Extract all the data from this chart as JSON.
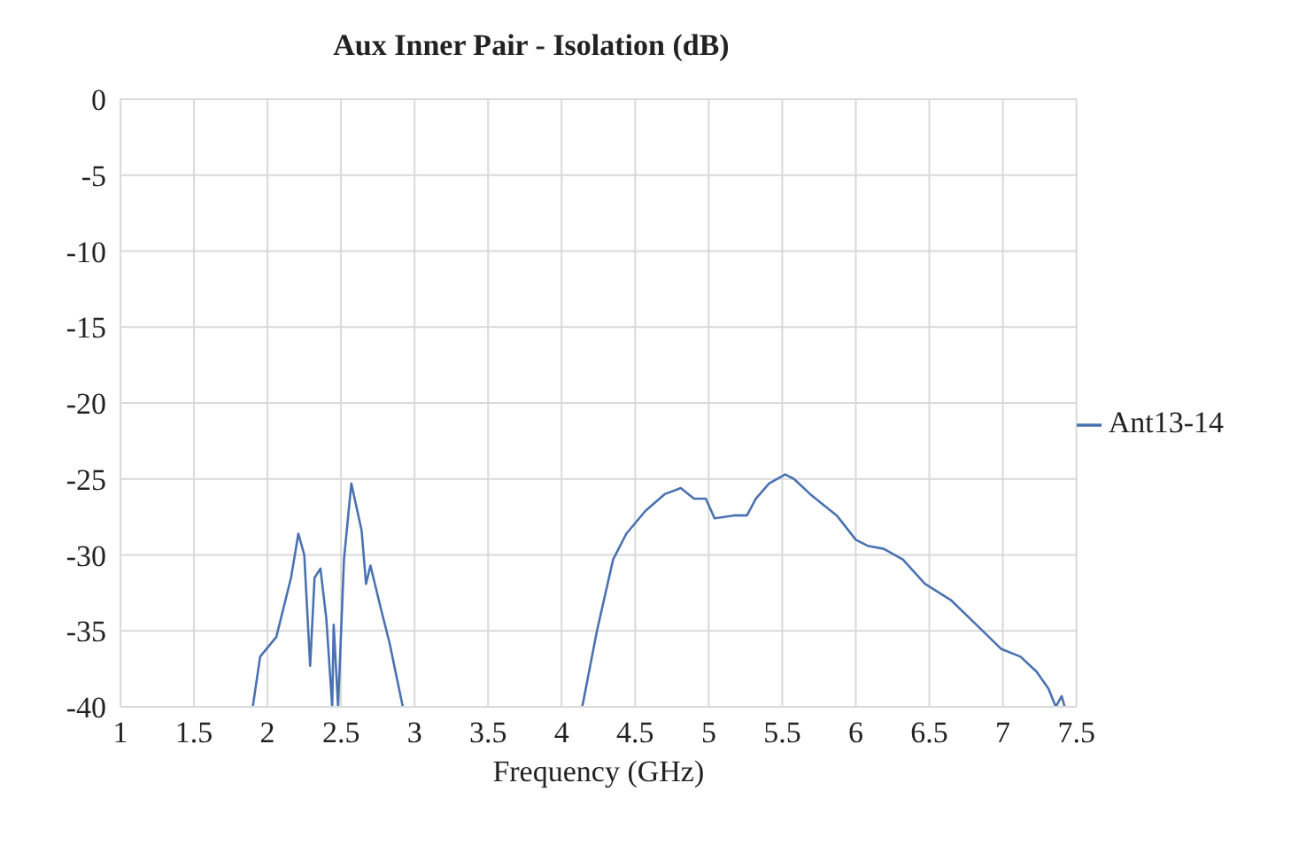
{
  "chart_data": {
    "type": "line",
    "title": "Aux Inner Pair - Isolation (dB)",
    "xlabel": "Frequency (GHz)",
    "x": [
      1.9,
      1.95,
      2.06,
      2.16,
      2.21,
      2.25,
      2.29,
      2.32,
      2.36,
      2.4,
      2.44,
      2.45,
      2.48,
      2.52,
      2.57,
      2.64,
      2.67,
      2.7,
      2.77,
      2.83,
      2.92,
      3.5,
      4.14,
      4.24,
      4.35,
      4.44,
      4.57,
      4.7,
      4.81,
      4.9,
      4.98,
      5.04,
      5.17,
      5.26,
      5.32,
      5.41,
      5.52,
      5.58,
      5.69,
      5.87,
      6.0,
      6.08,
      6.19,
      6.32,
      6.47,
      6.65,
      6.82,
      6.99,
      7.12,
      7.23,
      7.31,
      7.36,
      7.4,
      7.42
    ],
    "series": [
      {
        "name": "Ant13-14",
        "color": "#4a72b0",
        "values": [
          -40,
          -36.7,
          -35.4,
          -31.5,
          -28.6,
          -30,
          -37.3,
          -31.5,
          -30.9,
          -34.2,
          -40,
          -34.6,
          -40,
          -30.3,
          -25.3,
          -28.4,
          -31.9,
          -30.7,
          -33.5,
          -35.8,
          -40,
          null,
          -40,
          -35,
          -30.3,
          -28.6,
          -27.1,
          -26,
          -25.6,
          -26.3,
          -26.3,
          -27.6,
          -27.4,
          -27.4,
          -26.3,
          -25.3,
          -24.7,
          -25,
          -26,
          -27.4,
          -29,
          -29.4,
          -29.6,
          -30.3,
          -31.9,
          -33,
          -34.6,
          -36.2,
          -36.7,
          -37.7,
          -38.8,
          -40,
          -39.3,
          -40
        ]
      }
    ],
    "xlim": [
      1,
      7.5
    ],
    "xticks": [
      1,
      1.5,
      2,
      2.5,
      3,
      3.5,
      4,
      4.5,
      5,
      5.5,
      6,
      6.5,
      7,
      7.5
    ],
    "ylim": [
      -40,
      0
    ],
    "yticks": [
      0,
      -5,
      -10,
      -15,
      -20,
      -25,
      -30,
      -35,
      -40
    ],
    "grid": true,
    "legend": "right",
    "marker": "none",
    "line_style": "solid"
  }
}
